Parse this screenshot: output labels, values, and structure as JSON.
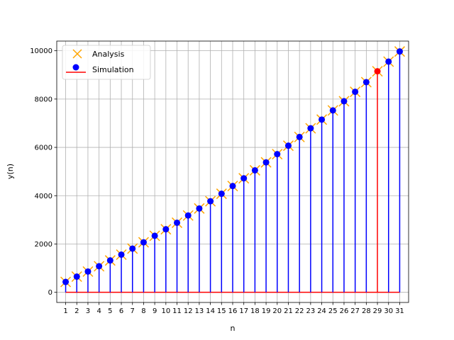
{
  "chart_data": {
    "type": "stem",
    "title": "",
    "xlabel": "n",
    "ylabel": "y(n)",
    "xlim": [
      0.2,
      31.8
    ],
    "ylim": [
      -420,
      10400
    ],
    "xticks": [
      1,
      2,
      3,
      4,
      5,
      6,
      7,
      8,
      9,
      10,
      11,
      12,
      13,
      14,
      15,
      16,
      17,
      18,
      19,
      20,
      21,
      22,
      23,
      24,
      25,
      26,
      27,
      28,
      29,
      30,
      31
    ],
    "yticks": [
      0,
      2000,
      4000,
      6000,
      8000,
      10000
    ],
    "grid": true,
    "legend_position": "top-left",
    "legend": [
      {
        "label": "Analysis",
        "marker": "x",
        "color": "#FFA500"
      },
      {
        "label": "Simulation",
        "marker": "line-dot",
        "color": "#FF0000"
      }
    ],
    "x": [
      1,
      2,
      3,
      4,
      5,
      6,
      7,
      8,
      9,
      10,
      11,
      12,
      13,
      14,
      15,
      16,
      17,
      18,
      19,
      20,
      21,
      22,
      23,
      24,
      25,
      26,
      27,
      28,
      29,
      30,
      31
    ],
    "series": [
      {
        "name": "Analysis",
        "marker": "x",
        "color": "#FFA500",
        "values": [
          430,
          650,
          860,
          1080,
          1320,
          1560,
          1810,
          2070,
          2340,
          2610,
          2880,
          3180,
          3470,
          3770,
          4080,
          4400,
          4720,
          5050,
          5380,
          5720,
          6070,
          6430,
          6790,
          7150,
          7530,
          7910,
          8300,
          8700,
          9150,
          9550,
          9970
        ]
      },
      {
        "name": "Simulation",
        "marker": "o",
        "color": "#0000FF",
        "highlight_color": "#FF0000",
        "highlight_index": 28,
        "baseline_color": "#FF0000",
        "values": [
          430,
          650,
          860,
          1080,
          1320,
          1560,
          1810,
          2070,
          2340,
          2610,
          2880,
          3180,
          3470,
          3770,
          4080,
          4400,
          4720,
          5050,
          5380,
          5720,
          6070,
          6430,
          6790,
          7150,
          7530,
          7910,
          8300,
          8700,
          9150,
          9550,
          9970
        ]
      }
    ]
  }
}
